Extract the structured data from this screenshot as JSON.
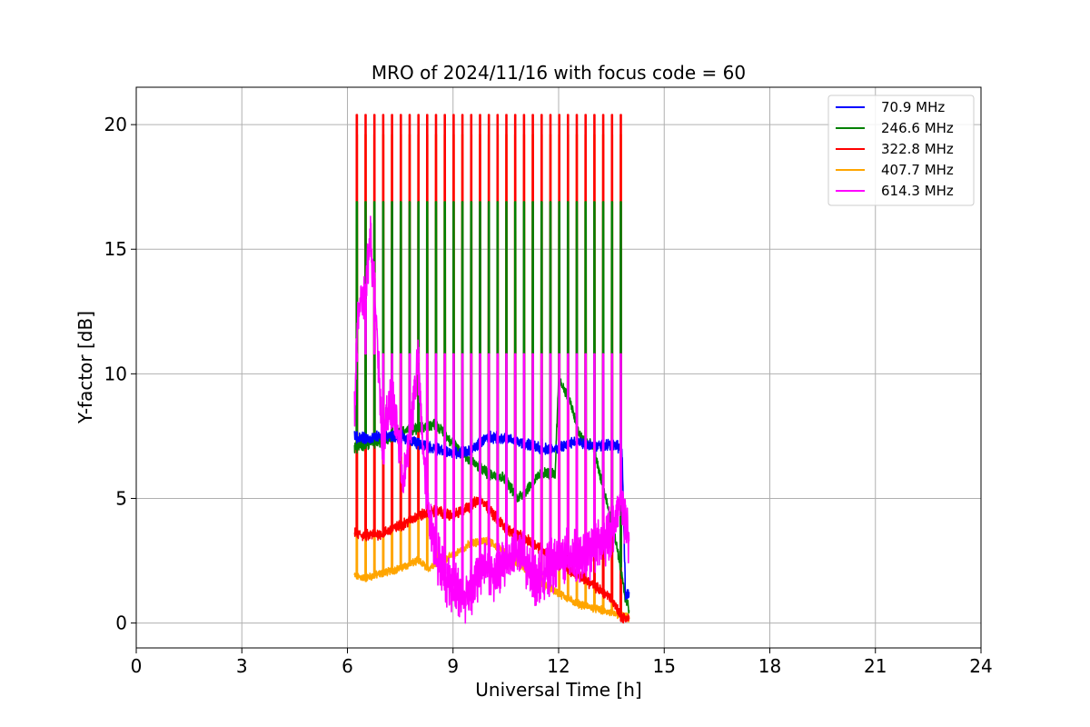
{
  "chart_data": {
    "type": "line",
    "title": "MRO of 2024/11/16 with focus code = 60",
    "xlabel": "Universal Time [h]",
    "ylabel": "Y-factor [dB]",
    "xlim": [
      0,
      24
    ],
    "ylim": [
      -1,
      21.5
    ],
    "xticks": [
      0,
      3,
      6,
      9,
      12,
      15,
      18,
      21,
      24
    ],
    "yticks": [
      0,
      5,
      10,
      15,
      20
    ],
    "grid": true,
    "legend_position": "top-right",
    "calibration_pulses": {
      "times": [
        6.25,
        6.5,
        6.75,
        7.0,
        7.25,
        7.5,
        7.75,
        8.0,
        8.25,
        8.5,
        8.75,
        9.0,
        9.25,
        9.5,
        9.75,
        10.0,
        10.25,
        10.5,
        10.75,
        11.0,
        11.25,
        11.5,
        11.75,
        12.0,
        12.25,
        12.5,
        12.75,
        13.0,
        13.25,
        13.5,
        13.75
      ],
      "peaks": {
        "70.9 MHz": 7.4,
        "246.6 MHz": 16.9,
        "322.8 MHz": 20.4,
        "407.7 MHz": 19.6,
        "614.3 MHz": 10.8
      }
    },
    "series": [
      {
        "name": " 70.9 MHz",
        "color": "#0000ff",
        "x": [
          6.2,
          6.5,
          7.0,
          7.5,
          8.0,
          8.5,
          9.0,
          9.5,
          10.0,
          10.5,
          11.0,
          11.5,
          12.0,
          12.5,
          13.0,
          13.5,
          13.8,
          13.9,
          14.0
        ],
        "y": [
          7.5,
          7.4,
          7.5,
          7.5,
          7.2,
          7.0,
          6.8,
          6.9,
          7.5,
          7.4,
          7.2,
          7.0,
          7.0,
          7.3,
          7.1,
          7.2,
          7.0,
          1.0,
          1.2
        ]
      },
      {
        "name": "246.6 MHz",
        "color": "#008000",
        "x": [
          6.2,
          6.5,
          7.0,
          7.5,
          8.0,
          8.5,
          9.0,
          9.5,
          10.0,
          10.5,
          10.8,
          11.0,
          11.5,
          11.9,
          12.0,
          12.3,
          12.6,
          13.0,
          13.3,
          13.6,
          13.9,
          14.0
        ],
        "y": [
          7.0,
          7.2,
          7.3,
          7.7,
          7.8,
          8.0,
          7.2,
          6.5,
          6.0,
          5.8,
          5.0,
          5.2,
          6.0,
          6.0,
          9.8,
          9.0,
          7.5,
          7.0,
          5.2,
          3.5,
          1.0,
          0.6
        ]
      },
      {
        "name": "322.8 MHz",
        "color": "#ff0000",
        "x": [
          6.2,
          6.5,
          7.0,
          7.5,
          8.0,
          8.5,
          9.0,
          9.5,
          9.8,
          10.0,
          10.5,
          11.0,
          11.5,
          12.0,
          12.5,
          13.0,
          13.5,
          13.8,
          14.0
        ],
        "y": [
          3.6,
          3.5,
          3.6,
          3.9,
          4.3,
          4.5,
          4.3,
          4.7,
          5.0,
          4.6,
          3.8,
          3.4,
          3.0,
          2.4,
          2.0,
          1.5,
          1.0,
          0.2,
          0.2
        ]
      },
      {
        "name": "407.7 MHz",
        "color": "#ffa500",
        "x": [
          6.2,
          6.5,
          7.0,
          7.5,
          8.0,
          8.3,
          8.6,
          9.0,
          9.5,
          10.0,
          10.5,
          11.0,
          11.5,
          12.0,
          12.5,
          13.0,
          13.5,
          14.0
        ],
        "y": [
          1.9,
          1.8,
          2.0,
          2.2,
          2.5,
          2.2,
          2.5,
          2.7,
          3.2,
          3.3,
          2.8,
          2.2,
          1.6,
          1.2,
          0.8,
          0.6,
          0.4,
          0.2
        ]
      },
      {
        "name": "614.3 MHz",
        "color": "#ff00ff",
        "x": [
          6.2,
          6.3,
          6.5,
          6.65,
          6.8,
          7.0,
          7.2,
          7.4,
          7.6,
          7.8,
          8.0,
          8.2,
          8.4,
          8.6,
          8.8,
          9.0,
          9.3,
          9.6,
          9.9,
          10.2,
          10.5,
          10.8,
          11.0,
          11.3,
          11.6,
          12.0,
          12.3,
          12.6,
          13.0,
          13.3,
          13.6,
          13.8,
          14.0
        ],
        "y": [
          8.5,
          12.5,
          13.0,
          15.5,
          13.0,
          7.0,
          9.0,
          8.0,
          5.5,
          8.0,
          10.5,
          6.0,
          3.5,
          2.5,
          1.8,
          1.5,
          1.0,
          1.5,
          2.5,
          1.8,
          2.5,
          3.0,
          2.5,
          1.8,
          2.0,
          2.5,
          2.8,
          2.5,
          3.0,
          3.2,
          4.0,
          5.0,
          3.0
        ]
      }
    ]
  }
}
